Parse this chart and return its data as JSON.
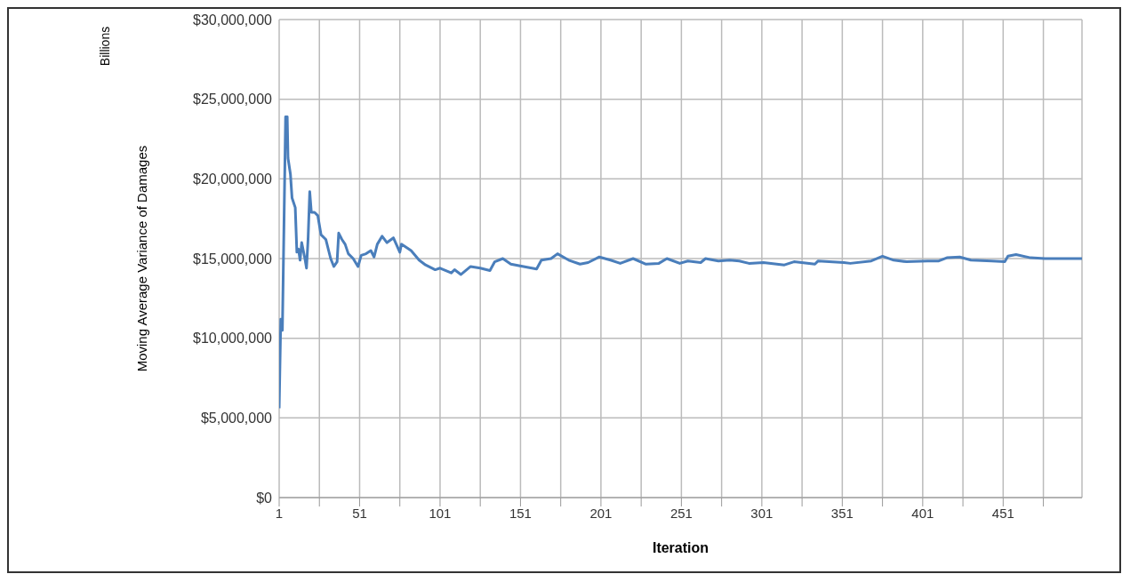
{
  "chart_data": {
    "type": "line",
    "xlabel": "Iteration",
    "ylabel": "Moving Average Variance of Damages",
    "annotations": [
      "Billions"
    ],
    "x": [
      1,
      2,
      3,
      5,
      6,
      6.5,
      8,
      9,
      11,
      12,
      13,
      14,
      15,
      17,
      18,
      19,
      20,
      21,
      23,
      25,
      27,
      30,
      33,
      35,
      37,
      38,
      40,
      42,
      44,
      47,
      50,
      52,
      55,
      58,
      60,
      62,
      65,
      68,
      72,
      76,
      77,
      83,
      88,
      92,
      98,
      101,
      108,
      110,
      114,
      120,
      126,
      132,
      135,
      140,
      145,
      150,
      161,
      164,
      170,
      174,
      181,
      188,
      193,
      200,
      207,
      213,
      221,
      229,
      237,
      242,
      250,
      255,
      263,
      266,
      274,
      281,
      287,
      293,
      302,
      315,
      321,
      334,
      336,
      352,
      356,
      369,
      376,
      383,
      391,
      404,
      411,
      416,
      424,
      431,
      444,
      452,
      454,
      459,
      468,
      477,
      488,
      500
    ],
    "series": [
      {
        "color": "#4a7ebb",
        "values": [
          5600000,
          11200000,
          10500000,
          23900000,
          23900000,
          21300000,
          20300000,
          18800000,
          18200000,
          15400000,
          15600000,
          14900000,
          16000000,
          15000000,
          14400000,
          16300000,
          19200000,
          17900000,
          17900000,
          17700000,
          16500000,
          16200000,
          15000000,
          14500000,
          14800000,
          16600000,
          16200000,
          15900000,
          15300000,
          15000000,
          14500000,
          15200000,
          15300000,
          15500000,
          15100000,
          15900000,
          16400000,
          16000000,
          16300000,
          15400000,
          15900000,
          15500000,
          14900000,
          14600000,
          14300000,
          14400000,
          14100000,
          14300000,
          14000000,
          14500000,
          14400000,
          14250000,
          14800000,
          15000000,
          14650000,
          14550000,
          14350000,
          14900000,
          15000000,
          15300000,
          14900000,
          14650000,
          14750000,
          15100000,
          14900000,
          14700000,
          15000000,
          14650000,
          14700000,
          15000000,
          14700000,
          14850000,
          14750000,
          15000000,
          14850000,
          14900000,
          14850000,
          14700000,
          14750000,
          14600000,
          14800000,
          14650000,
          14850000,
          14750000,
          14700000,
          14850000,
          15150000,
          14900000,
          14800000,
          14850000,
          14850000,
          15050000,
          15100000,
          14900000,
          14850000,
          14800000,
          15150000,
          15250000,
          15050000,
          15000000,
          15000000,
          15000000
        ]
      }
    ],
    "xlim": [
      1,
      500
    ],
    "xticks": [
      1,
      {
        "value": 26,
        "label": null
      },
      51,
      {
        "value": 76,
        "label": null
      },
      101,
      {
        "value": 126,
        "label": null
      },
      151,
      {
        "value": 176,
        "label": null
      },
      201,
      {
        "value": 226,
        "label": null
      },
      251,
      {
        "value": 276,
        "label": null
      },
      301,
      {
        "value": 326,
        "label": null
      },
      351,
      {
        "value": 376,
        "label": null
      },
      401,
      {
        "value": 426,
        "label": null
      },
      451,
      {
        "value": 476,
        "label": null
      }
    ],
    "ylim": [
      0,
      30000000
    ],
    "yticks": [
      {
        "value": 0,
        "label": "$0"
      },
      {
        "value": 5000000,
        "label": "$5,000,000"
      },
      {
        "value": 10000000,
        "label": "$10,000,000"
      },
      {
        "value": 15000000,
        "label": "$15,000,000"
      },
      {
        "value": 20000000,
        "label": "$20,000,000"
      },
      {
        "value": 25000000,
        "label": "$25,000,000"
      },
      {
        "value": 30000000,
        "label": "$30,000,000"
      }
    ],
    "grid": true,
    "legend": false,
    "marker": "none",
    "line_style": "solid"
  }
}
